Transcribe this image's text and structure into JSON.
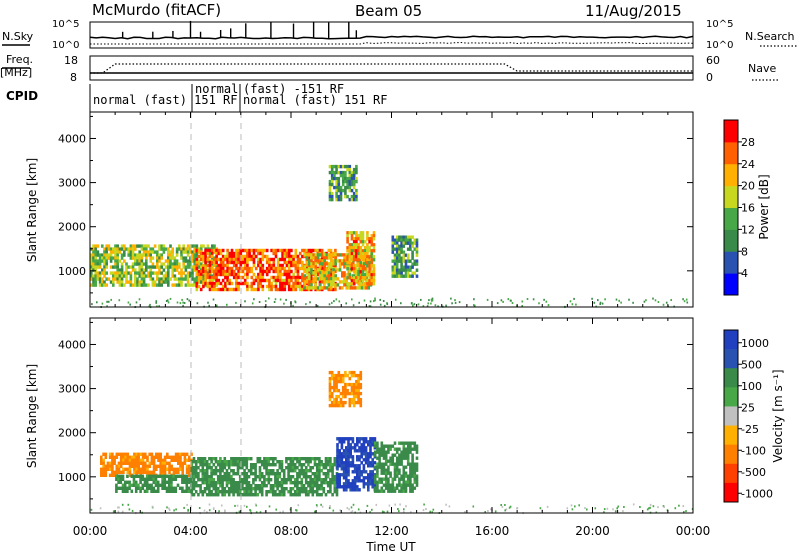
{
  "header": {
    "title": "McMurdo (fitACF)",
    "beam": "Beam 05",
    "date": "11/Aug/2015"
  },
  "noise_panel": {
    "left_label": "N.Sky",
    "right_label": "N.Search",
    "left_ticks": [
      "10^5",
      "10^0"
    ],
    "right_ticks": [
      "10^5",
      "10^0"
    ]
  },
  "freq_panel": {
    "left_label_1": "Freq.",
    "left_label_2": "[MHz]",
    "right_label": "Nave",
    "left_ticks": [
      "18",
      "8"
    ],
    "right_ticks": [
      "60",
      "0"
    ]
  },
  "cpid_panel": {
    "label": "CPID",
    "modes": [
      "normal (fast) 151 RF",
      "normal",
      "(fast) -151 RF",
      "normal (fast) 151 RF"
    ]
  },
  "x_axis": {
    "label": "Time UT",
    "ticks": [
      "00:00",
      "04:00",
      "08:00",
      "12:00",
      "16:00",
      "20:00",
      "00:00"
    ]
  },
  "y_axis": {
    "label": "Slant Range [km]",
    "ticks": [
      "1000",
      "2000",
      "3000",
      "4000"
    ]
  },
  "power_colorbar": {
    "label": "Power [dB]",
    "ticks": [
      "4",
      "8",
      "12",
      "16",
      "20",
      "24",
      "28"
    ],
    "colors": [
      "#0000ff",
      "#2a52b0",
      "#3a8a4a",
      "#48a848",
      "#c8d820",
      "#ffb000",
      "#ff6000",
      "#ff0000"
    ]
  },
  "velocity_colorbar": {
    "label": "Velocity [m s⁻¹]",
    "ticks": [
      "1000",
      "500",
      "100",
      "25",
      "-25",
      "-100",
      "-500",
      "-1000"
    ],
    "colors": [
      "#2040c0",
      "#2a52b0",
      "#3a8a4a",
      "#48a848",
      "#c0c0c0",
      "#ffb000",
      "#ff8000",
      "#ff4000",
      "#ff0000"
    ]
  },
  "chart_data": [
    {
      "type": "heatmap",
      "title": "Power",
      "xlabel": "Time UT",
      "ylabel": "Slant Range [km]",
      "xlim": [
        0,
        24
      ],
      "ylim": [
        180,
        4600
      ],
      "colorbar_label": "Power [dB]",
      "colorbar_range": [
        0,
        32
      ],
      "regions": [
        {
          "t0": 0.0,
          "t1": 5.0,
          "r0": 650,
          "r1": 1600,
          "value": 16
        },
        {
          "t0": 4.2,
          "t1": 9.8,
          "r0": 600,
          "r1": 1500,
          "value": 26
        },
        {
          "t0": 8.5,
          "t1": 11.2,
          "r0": 650,
          "r1": 1400,
          "value": 20
        },
        {
          "t0": 9.5,
          "t1": 10.6,
          "r0": 2600,
          "r1": 3400,
          "value": 12
        },
        {
          "t0": 10.2,
          "t1": 11.3,
          "r0": 700,
          "r1": 1900,
          "value": 22
        },
        {
          "t0": 12.0,
          "t1": 13.0,
          "r0": 900,
          "r1": 1800,
          "value": 12
        }
      ]
    },
    {
      "type": "heatmap",
      "title": "Velocity",
      "xlabel": "Time UT",
      "ylabel": "Slant Range [km]",
      "xlim": [
        0,
        24
      ],
      "ylim": [
        180,
        4600
      ],
      "colorbar_label": "Velocity [m s⁻¹]",
      "colorbar_range": [
        -1000,
        1000
      ],
      "regions": [
        {
          "t0": 0.4,
          "t1": 4.0,
          "r0": 1050,
          "r1": 1550,
          "value": -150
        },
        {
          "t0": 1.0,
          "t1": 4.0,
          "r0": 650,
          "r1": 1050,
          "value": 150
        },
        {
          "t0": 4.0,
          "t1": 9.8,
          "r0": 600,
          "r1": 1450,
          "value": 150
        },
        {
          "t0": 9.8,
          "t1": 11.3,
          "r0": 700,
          "r1": 1900,
          "value": 600
        },
        {
          "t0": 11.3,
          "t1": 13.0,
          "r0": 700,
          "r1": 1800,
          "value": 150
        },
        {
          "t0": 9.5,
          "t1": 10.8,
          "r0": 2600,
          "r1": 3400,
          "value": -120
        }
      ]
    }
  ]
}
